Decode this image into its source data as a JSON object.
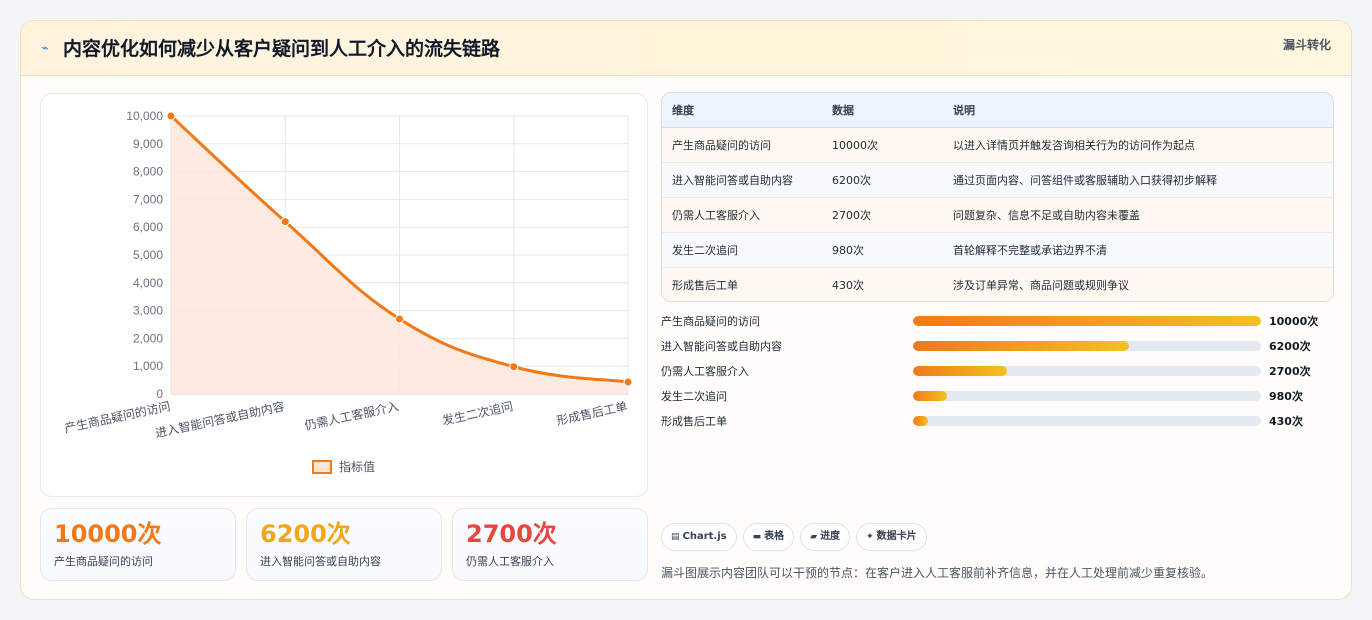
{
  "header": {
    "icon": "lightning-icon",
    "title": "内容优化如何减少从客户疑问到人工介入的流失链路",
    "tag": "漏斗转化"
  },
  "colors": {
    "accent": "#f07a1a",
    "accent_fill": "#fde8dc",
    "stat1": "#f07a1a",
    "stat2": "#f0a81a",
    "stat3": "#e8453c"
  },
  "chart_data": {
    "type": "line",
    "categories": [
      "产生商品疑问的访问",
      "进入智能问答或自助内容",
      "仍需人工客服介入",
      "发生二次追问",
      "形成售后工单"
    ],
    "series": [
      {
        "name": "指标值",
        "values": [
          10000,
          6200,
          2700,
          980,
          430
        ]
      }
    ],
    "ylim": [
      0,
      10000
    ],
    "yticks": [
      "0",
      "1,000",
      "2,000",
      "3,000",
      "4,000",
      "5,000",
      "6,000",
      "7,000",
      "8,000",
      "9,000",
      "10,000"
    ],
    "grid": true,
    "area_fill": true,
    "legend_position": "bottom"
  },
  "stats": [
    {
      "value": "10000次",
      "label": "产生商品疑问的访问"
    },
    {
      "value": "6200次",
      "label": "进入智能问答或自助内容"
    },
    {
      "value": "2700次",
      "label": "仍需人工客服介入"
    }
  ],
  "table": {
    "headers": [
      "维度",
      "数据",
      "说明"
    ],
    "rows": [
      [
        "产生商品疑问的访问",
        "10000次",
        "以进入详情页并触发咨询相关行为的访问作为起点"
      ],
      [
        "进入智能问答或自助内容",
        "6200次",
        "通过页面内容、问答组件或客服辅助入口获得初步解释"
      ],
      [
        "仍需人工客服介入",
        "2700次",
        "问题复杂、信息不足或自助内容未覆盖"
      ],
      [
        "发生二次追问",
        "980次",
        "首轮解释不完整或承诺边界不清"
      ],
      [
        "形成售后工单",
        "430次",
        "涉及订单异常、商品问题或规则争议"
      ]
    ]
  },
  "progress": [
    {
      "label": "产生商品疑问的访问",
      "value": "10000次",
      "fraction": 1.0
    },
    {
      "label": "进入智能问答或自助内容",
      "value": "6200次",
      "fraction": 0.62
    },
    {
      "label": "仍需人工客服介入",
      "value": "2700次",
      "fraction": 0.27
    },
    {
      "label": "发生二次追问",
      "value": "980次",
      "fraction": 0.098
    },
    {
      "label": "形成售后工单",
      "value": "430次",
      "fraction": 0.043
    }
  ],
  "chips": [
    {
      "icon": "chart-icon",
      "glyph": "▤",
      "label": "Chart.js"
    },
    {
      "icon": "table-icon",
      "glyph": "▬",
      "label": "表格"
    },
    {
      "icon": "progress-icon",
      "glyph": "▰",
      "label": "进度"
    },
    {
      "icon": "sparkle-icon",
      "glyph": "✦",
      "label": "数据卡片"
    }
  ],
  "footer_note": "漏斗图展示内容团队可以干预的节点：在客户进入人工客服前补齐信息，并在人工处理前减少重复核验。"
}
